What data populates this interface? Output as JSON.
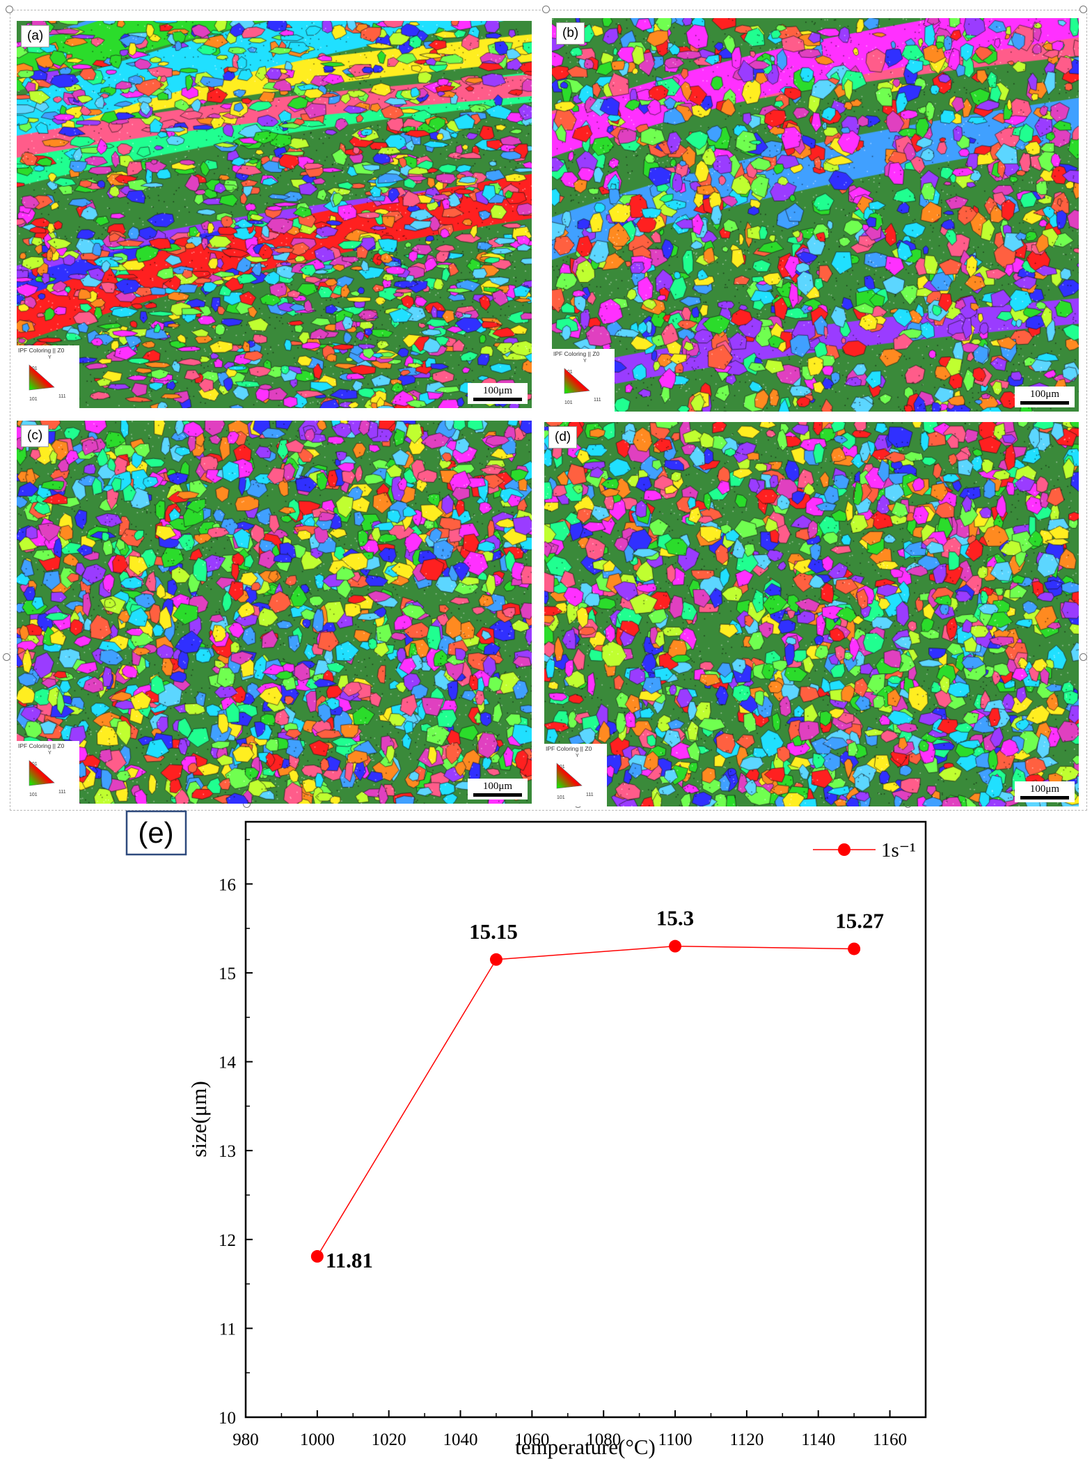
{
  "panels": [
    {
      "id": "a",
      "label": "(a)",
      "ipf_title": "IPF Coloring || Z0",
      "ipf_y": "Y",
      "ipf_001": "001",
      "ipf_101": "101",
      "ipf_111": "111",
      "scale": "100μm",
      "seed": 11,
      "style": "deformed"
    },
    {
      "id": "b",
      "label": "(b)",
      "ipf_title": "IPF Coloring || Z0",
      "ipf_y": "Y",
      "ipf_001": "001",
      "ipf_101": "101",
      "ipf_111": "111",
      "scale": "100μm",
      "seed": 23,
      "style": "mixed"
    },
    {
      "id": "c",
      "label": "(c)",
      "ipf_title": "IPF Coloring || Z0",
      "ipf_y": "Y",
      "ipf_001": "001",
      "ipf_101": "101",
      "ipf_111": "111",
      "scale": "100μm",
      "seed": 37,
      "style": "equiaxed"
    },
    {
      "id": "d",
      "label": "(d)",
      "ipf_title": "IPF Coloring || Z0",
      "ipf_y": "Y",
      "ipf_001": "001",
      "ipf_101": "101",
      "ipf_111": "111",
      "scale": "100μm",
      "seed": 51,
      "style": "equiaxed"
    }
  ],
  "chart_tag": "(e)",
  "chart_data": {
    "type": "line",
    "x": [
      1000,
      1050,
      1100,
      1150
    ],
    "series": [
      {
        "name": "1s⁻¹",
        "values": [
          11.81,
          15.15,
          15.3,
          15.27
        ],
        "color": "#ff0000"
      }
    ],
    "data_labels": [
      "11.81",
      "15.15",
      "15.3",
      "15.27"
    ],
    "xlabel": "temperature(°C)",
    "ylabel": "size(μm)",
    "xlim": [
      980,
      1170
    ],
    "ylim": [
      10,
      16.7
    ],
    "xticks": [
      980,
      1000,
      1020,
      1040,
      1060,
      1080,
      1100,
      1120,
      1140,
      1160
    ],
    "yticks": [
      10,
      11,
      12,
      13,
      14,
      15,
      16
    ],
    "legend_position": "top-right",
    "grid": false
  },
  "colors": {
    "accent": "#ff0000",
    "tag_border": "#2e4a7d"
  }
}
